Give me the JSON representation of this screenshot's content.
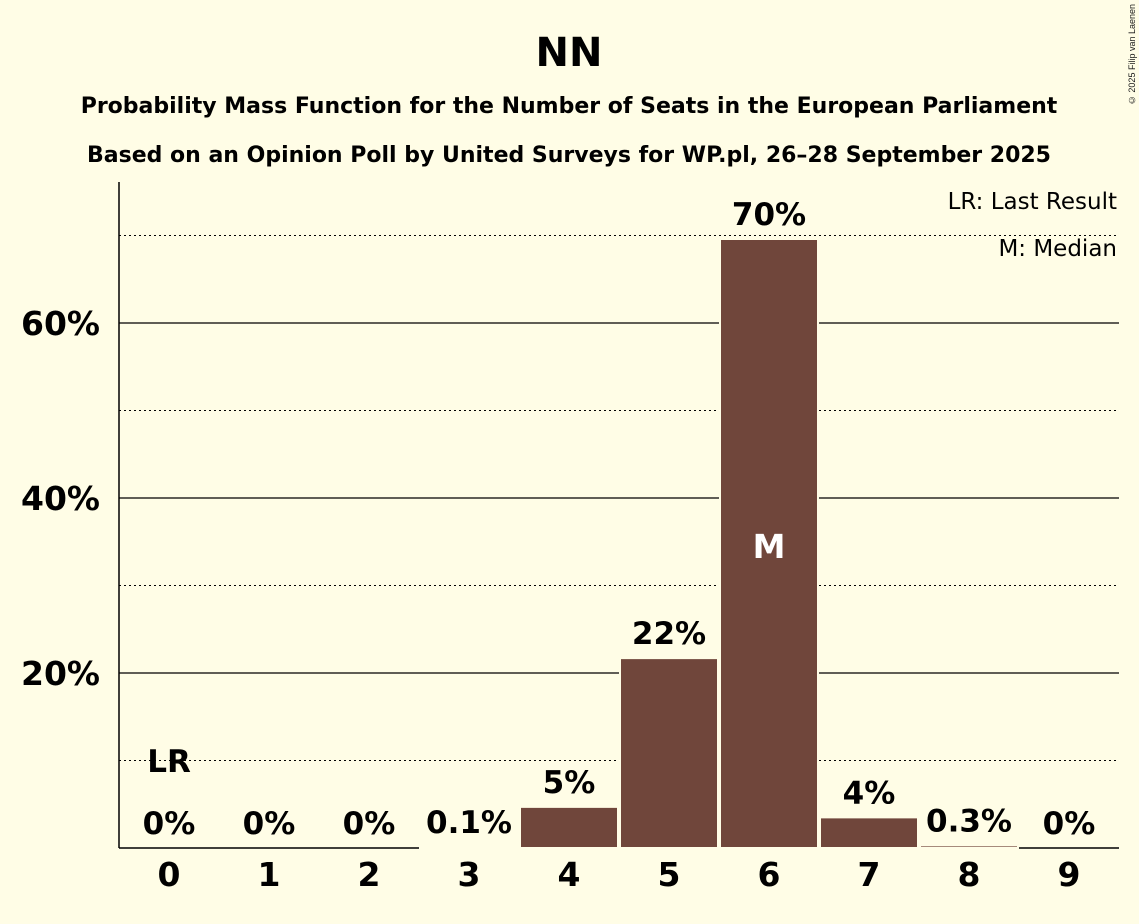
{
  "copyright": "© 2025 Filip van Laenen",
  "colors": {
    "bar": "#70463b",
    "background": "#fffde6"
  },
  "chart_data": {
    "type": "bar",
    "title": "NN",
    "subtitle": "Probability Mass Function for the Number of Seats in the European Parliament",
    "subtitle2": "Based on an Opinion Poll by United Surveys for WP.pl, 26–28 September 2025",
    "categories": [
      "0",
      "1",
      "2",
      "3",
      "4",
      "5",
      "6",
      "7",
      "8",
      "9"
    ],
    "values": [
      0,
      0,
      0,
      0.1,
      4.7,
      21.7,
      69.6,
      3.5,
      0.3,
      0
    ],
    "labels": [
      "0%",
      "0%",
      "0%",
      "0.1%",
      "5%",
      "22%",
      "70%",
      "4%",
      "0.3%",
      "0%"
    ],
    "ylim": [
      0,
      76
    ],
    "yticks": [
      20,
      40,
      60
    ],
    "ytick_labels": [
      "20%",
      "40%",
      "60%"
    ],
    "minor_gridlines": [
      10,
      30,
      50,
      70
    ],
    "last_result": {
      "seat": 0,
      "label": "LR"
    },
    "median": {
      "seat": 6,
      "label": "M"
    },
    "legend": [
      "LR: Last Result",
      "M: Median"
    ],
    "legend_position": "top-right"
  }
}
